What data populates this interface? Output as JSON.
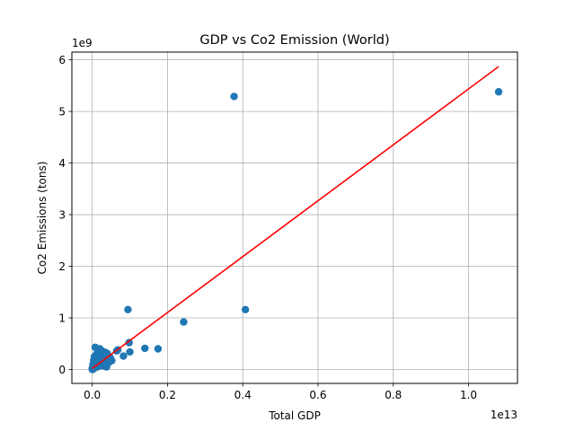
{
  "chart_data": {
    "type": "scatter",
    "title": "GDP vs Co2 Emission (World)",
    "xlabel": "Total GDP",
    "ylabel": "Co2 Emissions (tons)",
    "x_offset_label": "1e13",
    "y_offset_label": "1e9",
    "x_scale": 10000000000000,
    "y_scale": 1000000000,
    "xlim": [
      -0.054,
      1.13
    ],
    "ylim": [
      -0.27,
      6.15
    ],
    "x_ticks": [
      0.0,
      0.2,
      0.4,
      0.6,
      0.8,
      1.0
    ],
    "x_tick_labels": [
      "0.0",
      "0.2",
      "0.4",
      "0.6",
      "0.8",
      "1.0"
    ],
    "y_ticks": [
      0,
      1,
      2,
      3,
      4,
      5,
      6
    ],
    "y_tick_labels": [
      "0",
      "1",
      "2",
      "3",
      "4",
      "5",
      "6"
    ],
    "grid": true,
    "point_color": "#1f77b4",
    "line_color": "#ff0000",
    "points": [
      [
        1.08,
        5.38
      ],
      [
        0.377,
        5.29
      ],
      [
        0.407,
        1.16
      ],
      [
        0.095,
        1.16
      ],
      [
        0.243,
        0.92
      ],
      [
        0.098,
        0.52
      ],
      [
        0.14,
        0.41
      ],
      [
        0.175,
        0.4
      ],
      [
        0.1,
        0.34
      ],
      [
        0.083,
        0.26
      ],
      [
        0.065,
        0.36
      ],
      [
        0.068,
        0.38
      ],
      [
        0.052,
        0.17
      ],
      [
        0.045,
        0.14
      ],
      [
        0.04,
        0.31
      ],
      [
        0.038,
        0.05
      ],
      [
        0.035,
        0.33
      ],
      [
        0.032,
        0.28
      ],
      [
        0.03,
        0.2
      ],
      [
        0.028,
        0.35
      ],
      [
        0.025,
        0.1
      ],
      [
        0.022,
        0.38
      ],
      [
        0.02,
        0.4
      ],
      [
        0.018,
        0.12
      ],
      [
        0.016,
        0.22
      ],
      [
        0.014,
        0.05
      ],
      [
        0.012,
        0.3
      ],
      [
        0.01,
        0.15
      ],
      [
        0.008,
        0.43
      ],
      [
        0.007,
        0.08
      ],
      [
        0.006,
        0.25
      ],
      [
        0.005,
        0.02
      ],
      [
        0.004,
        0.18
      ],
      [
        0.003,
        0.06
      ],
      [
        0.002,
        0.1
      ],
      [
        0.0015,
        0.01
      ],
      [
        0.001,
        0.04
      ],
      [
        0.0005,
        0.0
      ],
      [
        0.0,
        0.02
      ],
      [
        0.001,
        0.0
      ],
      [
        0.002,
        0.03
      ],
      [
        0.003,
        0.01
      ],
      [
        0.004,
        0.07
      ],
      [
        0.006,
        0.13
      ],
      [
        0.009,
        0.2
      ],
      [
        0.011,
        0.09
      ],
      [
        0.013,
        0.16
      ],
      [
        0.015,
        0.26
      ],
      [
        0.017,
        0.06
      ],
      [
        0.019,
        0.29
      ],
      [
        0.021,
        0.11
      ],
      [
        0.024,
        0.24
      ],
      [
        0.027,
        0.14
      ],
      [
        0.029,
        0.07
      ],
      [
        0.031,
        0.18
      ],
      [
        0.033,
        0.09
      ],
      [
        0.036,
        0.22
      ],
      [
        0.039,
        0.12
      ],
      [
        0.042,
        0.19
      ],
      [
        0.048,
        0.23
      ]
    ],
    "fit_line": {
      "x": [
        0.0,
        1.08
      ],
      "y": [
        0.02,
        5.87
      ]
    }
  }
}
